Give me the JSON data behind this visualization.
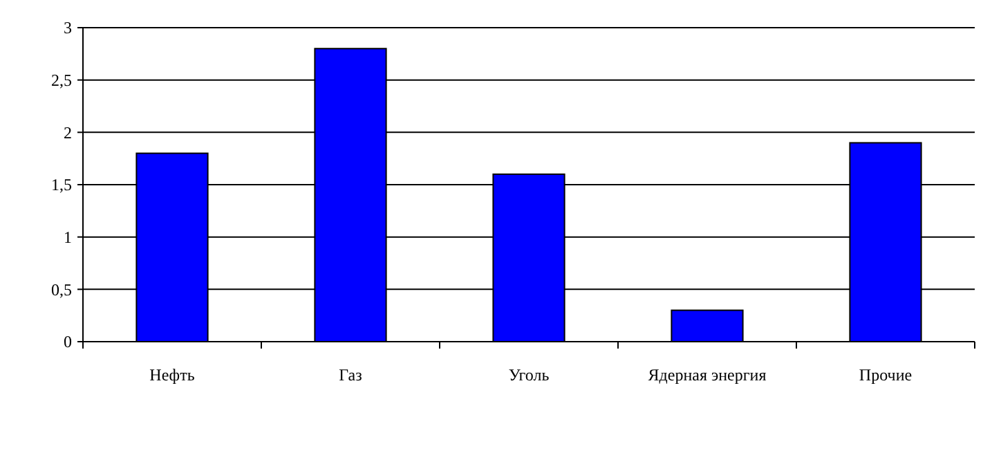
{
  "chart_data": {
    "type": "bar",
    "categories": [
      "Нефть",
      "Газ",
      "Уголь",
      "Ядерная энергия",
      "Прочие"
    ],
    "values": [
      1.8,
      2.8,
      1.6,
      0.3,
      1.9
    ],
    "color": "#0000ff",
    "ylim": [
      0,
      3
    ],
    "yticks": [
      0,
      {
        "value": 0.5,
        "label": "0,5"
      },
      1,
      {
        "value": 1.5,
        "label": "1,5"
      },
      2,
      {
        "value": 2.5,
        "label": "2,5"
      },
      3
    ],
    "grid": "y"
  }
}
